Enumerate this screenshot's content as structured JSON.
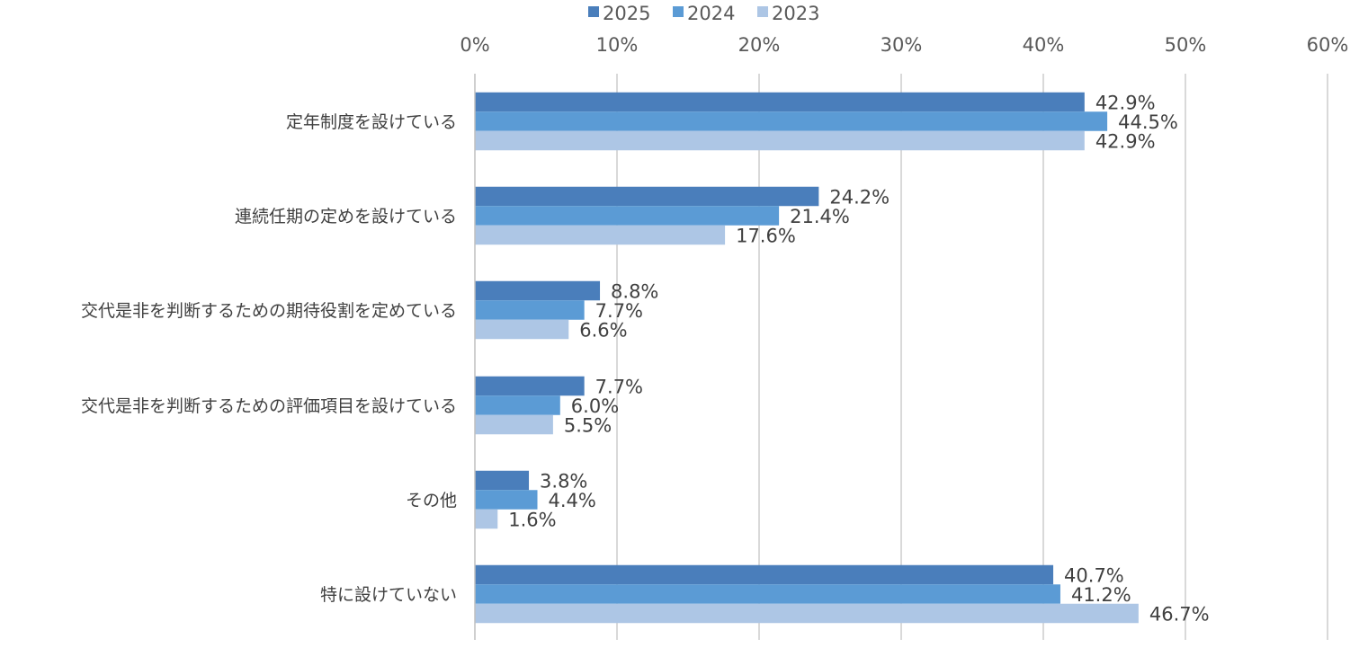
{
  "chart_data": {
    "type": "bar",
    "orientation": "horizontal",
    "categories": [
      "定年制度を設けている",
      "連続任期の定めを設けている",
      "交代是非を判断するための期待役割を定めている",
      "交代是非を判断するための評価項目を設けている",
      "その他",
      "特に設けていない"
    ],
    "series": [
      {
        "name": "2025",
        "color": "#4a7ebb",
        "values": [
          42.9,
          24.2,
          8.8,
          7.7,
          3.8,
          40.7
        ]
      },
      {
        "name": "2024",
        "color": "#5b9bd5",
        "values": [
          44.5,
          21.4,
          7.7,
          6.0,
          4.4,
          41.2
        ]
      },
      {
        "name": "2023",
        "color": "#adc6e5",
        "values": [
          42.9,
          17.6,
          6.6,
          5.5,
          1.6,
          46.7
        ]
      }
    ],
    "xlim": [
      0,
      60
    ],
    "x_ticks": [
      0,
      10,
      20,
      30,
      40,
      50,
      60
    ],
    "x_tick_labels": [
      "0%",
      "10%",
      "20%",
      "30%",
      "40%",
      "50%",
      "60%"
    ],
    "value_suffix": "%",
    "value_decimals": 1,
    "title": "",
    "xlabel": "",
    "ylabel": "",
    "grid": true,
    "legend_position": "top"
  }
}
